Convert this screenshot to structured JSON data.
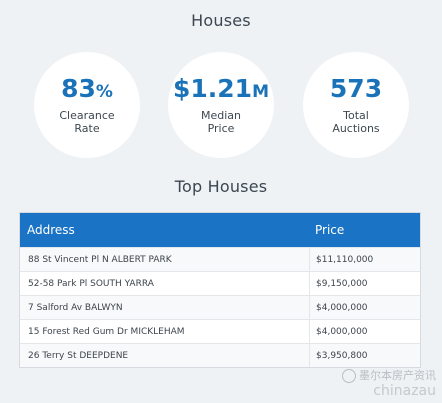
{
  "houses_title": "Houses",
  "stats": {
    "clearance": {
      "value": "83",
      "unit": "%",
      "label": "Clearance\nRate"
    },
    "median": {
      "value": "$1.21",
      "unit": "M",
      "label": "Median\nPrice"
    },
    "auctions": {
      "value": "573",
      "unit": "",
      "label": "Total\nAuctions"
    }
  },
  "top_houses_title": "Top Houses",
  "table": {
    "headers": {
      "address": "Address",
      "price": "Price"
    },
    "rows": [
      {
        "address": "88 St Vincent Pl N ALBERT PARK",
        "price": "$11,110,000"
      },
      {
        "address": "52-58 Park Pl SOUTH YARRA",
        "price": "$9,150,000"
      },
      {
        "address": "7 Salford Av BALWYN",
        "price": "$4,000,000"
      },
      {
        "address": "15 Forest Red Gum Dr MICKLEHAM",
        "price": "$4,000,000"
      },
      {
        "address": "26 Terry St DEEPDENE",
        "price": "$3,950,800"
      }
    ]
  },
  "watermark": {
    "brand": "墨尔本房产资讯",
    "domain": "chinazau"
  }
}
